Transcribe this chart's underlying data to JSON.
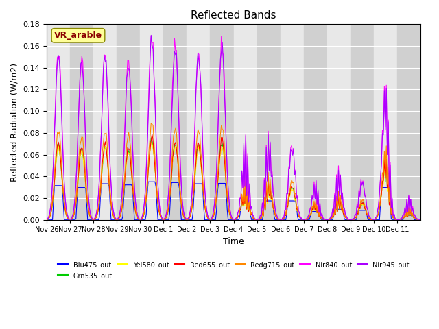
{
  "title": "Reflected Bands",
  "xlabel": "Time",
  "ylabel": "Reflected Radiation (W/m2)",
  "annotation": "VR_arable",
  "annotation_color": "#8B0000",
  "annotation_bg": "#FFFF99",
  "ylim": [
    0,
    0.18
  ],
  "bg_color": "#E8E8E8",
  "series": [
    {
      "name": "Blu475_out",
      "color": "#0000FF"
    },
    {
      "name": "Grn535_out",
      "color": "#00CC00"
    },
    {
      "name": "Yel580_out",
      "color": "#FFFF00"
    },
    {
      "name": "Red655_out",
      "color": "#FF0000"
    },
    {
      "name": "Redg715_out",
      "color": "#FF8800"
    },
    {
      "name": "Nir840_out",
      "color": "#FF00FF"
    },
    {
      "name": "Nir945_out",
      "color": "#AA00FF"
    }
  ],
  "xtick_labels": [
    "Nov 26",
    "Nov 27",
    "Nov 28",
    "Nov 29",
    "Nov 30",
    "Dec 1",
    "Dec 2",
    "Dec 3",
    "Dec 4",
    "Dec 5",
    "Dec 6",
    "Dec 7",
    "Dec 8",
    "Dec 9",
    "Dec 10",
    "Dec 11"
  ],
  "grid_color": "#FFFFFF",
  "days": 16,
  "series_max": {
    "Blu475_out": 0.035,
    "Grn535_out": 0.075,
    "Yel580_out": 0.072,
    "Red655_out": 0.077,
    "Redg715_out": 0.09,
    "Nir840_out": 0.17,
    "Nir945_out": 0.165
  },
  "day_peaks": [
    {
      "clear": true,
      "scale": 1.0,
      "cloud_factor": 0.9
    },
    {
      "clear": true,
      "scale": 0.95,
      "cloud_factor": 0.85
    },
    {
      "clear": true,
      "scale": 1.0,
      "cloud_factor": 0.95
    },
    {
      "clear": true,
      "scale": 0.95,
      "cloud_factor": 0.92
    },
    {
      "clear": true,
      "scale": 1.1,
      "cloud_factor": 1.0
    },
    {
      "clear": true,
      "scale": 1.05,
      "cloud_factor": 0.98
    },
    {
      "clear": true,
      "scale": 1.0,
      "cloud_factor": 0.95
    },
    {
      "clear": true,
      "scale": 1.05,
      "cloud_factor": 0.96
    },
    {
      "clear": false,
      "scale": 0.5,
      "cloud_factor": 0.45
    },
    {
      "clear": false,
      "scale": 0.55,
      "cloud_factor": 0.5
    },
    {
      "clear": false,
      "scale": 0.55,
      "cloud_factor": 0.5
    },
    {
      "clear": false,
      "scale": 0.25,
      "cloud_factor": 0.22
    },
    {
      "clear": false,
      "scale": 0.32,
      "cloud_factor": 0.28
    },
    {
      "clear": false,
      "scale": 0.28,
      "cloud_factor": 0.25
    },
    {
      "clear": false,
      "scale": 0.9,
      "cloud_factor": 0.85
    },
    {
      "clear": false,
      "scale": 0.15,
      "cloud_factor": 0.12
    }
  ]
}
